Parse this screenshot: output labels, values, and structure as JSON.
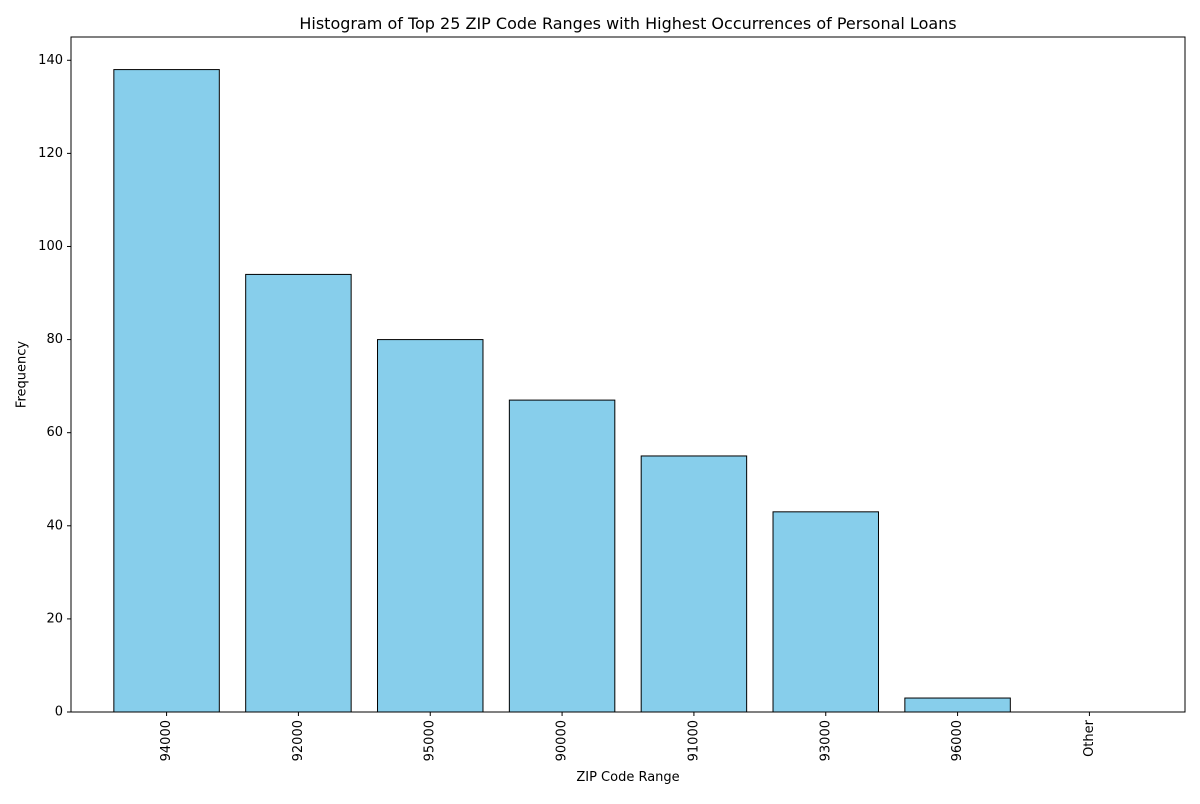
{
  "chart_data": {
    "type": "bar",
    "title": "Histogram of Top 25 ZIP Code Ranges with Highest Occurrences of Personal Loans",
    "xlabel": "ZIP Code Range",
    "ylabel": "Frequency",
    "categories": [
      "94000",
      "92000",
      "95000",
      "90000",
      "91000",
      "93000",
      "96000",
      "Other"
    ],
    "values": [
      138,
      94,
      80,
      67,
      55,
      43,
      3,
      0
    ],
    "ylim": [
      0,
      145
    ],
    "yticks": [
      0,
      20,
      40,
      60,
      80,
      100,
      120,
      140
    ],
    "grid": false,
    "bar_color": "#87CEEB",
    "edge_color": "#000000"
  }
}
